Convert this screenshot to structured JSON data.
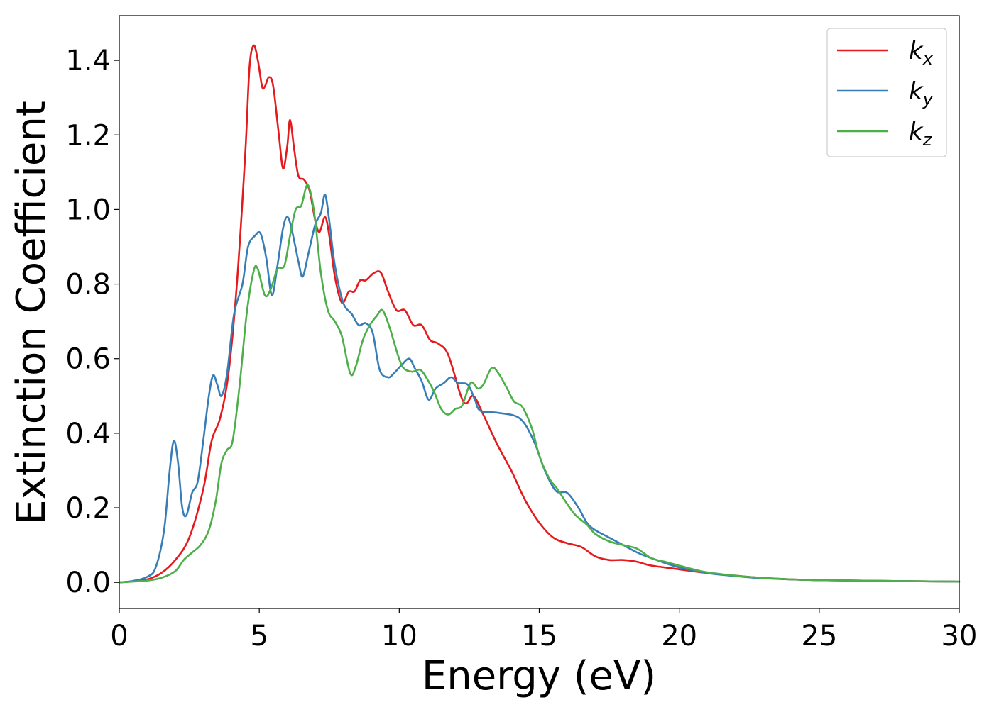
{
  "chart_data": {
    "type": "line",
    "title": "",
    "xlabel": "Energy (eV)",
    "ylabel": "Extinction Coefficient",
    "xlim": [
      0,
      30
    ],
    "ylim": [
      -0.07,
      1.52
    ],
    "xticks": [
      0,
      5,
      10,
      15,
      20,
      25,
      30
    ],
    "xtick_labels": [
      "0",
      "5",
      "10",
      "15",
      "20",
      "25",
      "30"
    ],
    "yticks": [
      0.0,
      0.2,
      0.4,
      0.6,
      0.8,
      1.0,
      1.2,
      1.4
    ],
    "ytick_labels": [
      "0.0",
      "0.2",
      "0.4",
      "0.6",
      "0.8",
      "1.0",
      "1.2",
      "1.4"
    ],
    "grid": false,
    "legend_position": "top-right",
    "series": [
      {
        "name": "k_x",
        "label_base": "k",
        "label_sub": "x",
        "color": "#e41a1c",
        "points": [
          [
            0,
            0
          ],
          [
            0.5,
            0.003
          ],
          [
            1,
            0.008
          ],
          [
            1.5,
            0.025
          ],
          [
            2,
            0.06
          ],
          [
            2.5,
            0.12
          ],
          [
            3,
            0.25
          ],
          [
            3.3,
            0.38
          ],
          [
            3.6,
            0.44
          ],
          [
            3.9,
            0.56
          ],
          [
            4.2,
            0.8
          ],
          [
            4.5,
            1.15
          ],
          [
            4.65,
            1.38
          ],
          [
            4.8,
            1.44
          ],
          [
            4.95,
            1.4
          ],
          [
            5.1,
            1.33
          ],
          [
            5.2,
            1.33
          ],
          [
            5.35,
            1.355
          ],
          [
            5.5,
            1.33
          ],
          [
            5.7,
            1.2
          ],
          [
            5.85,
            1.11
          ],
          [
            6.0,
            1.17
          ],
          [
            6.1,
            1.24
          ],
          [
            6.25,
            1.16
          ],
          [
            6.4,
            1.09
          ],
          [
            6.6,
            1.08
          ],
          [
            6.8,
            1.05
          ],
          [
            7.0,
            0.97
          ],
          [
            7.15,
            0.94
          ],
          [
            7.35,
            0.98
          ],
          [
            7.5,
            0.93
          ],
          [
            7.7,
            0.82
          ],
          [
            7.95,
            0.75
          ],
          [
            8.2,
            0.78
          ],
          [
            8.4,
            0.78
          ],
          [
            8.6,
            0.81
          ],
          [
            8.8,
            0.81
          ],
          [
            9.1,
            0.83
          ],
          [
            9.35,
            0.83
          ],
          [
            9.6,
            0.78
          ],
          [
            9.9,
            0.73
          ],
          [
            10.2,
            0.73
          ],
          [
            10.5,
            0.69
          ],
          [
            10.8,
            0.69
          ],
          [
            11.1,
            0.65
          ],
          [
            11.4,
            0.64
          ],
          [
            11.75,
            0.61
          ],
          [
            12.2,
            0.5
          ],
          [
            12.4,
            0.48
          ],
          [
            12.65,
            0.5
          ],
          [
            13.0,
            0.45
          ],
          [
            13.5,
            0.37
          ],
          [
            14.0,
            0.3
          ],
          [
            14.5,
            0.22
          ],
          [
            15.0,
            0.16
          ],
          [
            15.5,
            0.12
          ],
          [
            16.0,
            0.105
          ],
          [
            16.5,
            0.095
          ],
          [
            17.0,
            0.07
          ],
          [
            17.5,
            0.06
          ],
          [
            18.0,
            0.06
          ],
          [
            18.5,
            0.055
          ],
          [
            19.0,
            0.045
          ],
          [
            20.0,
            0.035
          ],
          [
            21.0,
            0.025
          ],
          [
            22.0,
            0.018
          ],
          [
            23.0,
            0.012
          ],
          [
            25.0,
            0.006
          ],
          [
            30.0,
            0.002
          ]
        ]
      },
      {
        "name": "k_y",
        "label_base": "k",
        "label_sub": "y",
        "color": "#377eb8",
        "points": [
          [
            0,
            0
          ],
          [
            0.5,
            0.004
          ],
          [
            1,
            0.015
          ],
          [
            1.3,
            0.04
          ],
          [
            1.6,
            0.14
          ],
          [
            1.8,
            0.3
          ],
          [
            1.95,
            0.38
          ],
          [
            2.1,
            0.32
          ],
          [
            2.25,
            0.2
          ],
          [
            2.4,
            0.18
          ],
          [
            2.6,
            0.24
          ],
          [
            2.8,
            0.27
          ],
          [
            3.0,
            0.38
          ],
          [
            3.2,
            0.5
          ],
          [
            3.35,
            0.555
          ],
          [
            3.5,
            0.53
          ],
          [
            3.65,
            0.5
          ],
          [
            3.85,
            0.56
          ],
          [
            4.1,
            0.72
          ],
          [
            4.4,
            0.8
          ],
          [
            4.6,
            0.9
          ],
          [
            4.85,
            0.93
          ],
          [
            5.05,
            0.935
          ],
          [
            5.25,
            0.87
          ],
          [
            5.45,
            0.77
          ],
          [
            5.65,
            0.85
          ],
          [
            5.85,
            0.95
          ],
          [
            6.0,
            0.98
          ],
          [
            6.15,
            0.95
          ],
          [
            6.4,
            0.86
          ],
          [
            6.55,
            0.82
          ],
          [
            6.75,
            0.88
          ],
          [
            7.0,
            0.96
          ],
          [
            7.2,
            0.99
          ],
          [
            7.35,
            1.04
          ],
          [
            7.5,
            0.97
          ],
          [
            7.7,
            0.85
          ],
          [
            8.0,
            0.75
          ],
          [
            8.3,
            0.72
          ],
          [
            8.55,
            0.69
          ],
          [
            8.8,
            0.695
          ],
          [
            9.05,
            0.67
          ],
          [
            9.3,
            0.57
          ],
          [
            9.6,
            0.55
          ],
          [
            9.8,
            0.56
          ],
          [
            10.05,
            0.58
          ],
          [
            10.35,
            0.6
          ],
          [
            10.55,
            0.575
          ],
          [
            10.8,
            0.54
          ],
          [
            11.05,
            0.49
          ],
          [
            11.3,
            0.52
          ],
          [
            11.6,
            0.535
          ],
          [
            11.85,
            0.55
          ],
          [
            12.1,
            0.535
          ],
          [
            12.45,
            0.53
          ],
          [
            12.7,
            0.49
          ],
          [
            12.9,
            0.46
          ],
          [
            13.5,
            0.455
          ],
          [
            14.3,
            0.44
          ],
          [
            14.8,
            0.38
          ],
          [
            15.2,
            0.3
          ],
          [
            15.6,
            0.245
          ],
          [
            16.0,
            0.24
          ],
          [
            16.4,
            0.2
          ],
          [
            16.7,
            0.16
          ],
          [
            17.0,
            0.14
          ],
          [
            17.5,
            0.12
          ],
          [
            18.0,
            0.1
          ],
          [
            18.5,
            0.08
          ],
          [
            19.0,
            0.065
          ],
          [
            20.0,
            0.04
          ],
          [
            21.0,
            0.025
          ],
          [
            22.0,
            0.017
          ],
          [
            23.0,
            0.011
          ],
          [
            25.0,
            0.006
          ],
          [
            30.0,
            0.002
          ]
        ]
      },
      {
        "name": "k_z",
        "label_base": "k",
        "label_sub": "z",
        "color": "#4daf4a",
        "points": [
          [
            0,
            0
          ],
          [
            0.5,
            0.002
          ],
          [
            1,
            0.005
          ],
          [
            1.5,
            0.012
          ],
          [
            2,
            0.03
          ],
          [
            2.3,
            0.06
          ],
          [
            2.6,
            0.08
          ],
          [
            2.9,
            0.1
          ],
          [
            3.2,
            0.14
          ],
          [
            3.45,
            0.22
          ],
          [
            3.65,
            0.32
          ],
          [
            3.85,
            0.355
          ],
          [
            4.05,
            0.38
          ],
          [
            4.3,
            0.53
          ],
          [
            4.55,
            0.72
          ],
          [
            4.8,
            0.835
          ],
          [
            4.95,
            0.84
          ],
          [
            5.2,
            0.77
          ],
          [
            5.4,
            0.785
          ],
          [
            5.65,
            0.84
          ],
          [
            5.9,
            0.85
          ],
          [
            6.1,
            0.93
          ],
          [
            6.3,
            1.0
          ],
          [
            6.5,
            1.01
          ],
          [
            6.7,
            1.065
          ],
          [
            6.85,
            1.04
          ],
          [
            7.0,
            0.97
          ],
          [
            7.2,
            0.83
          ],
          [
            7.45,
            0.73
          ],
          [
            7.7,
            0.7
          ],
          [
            7.95,
            0.66
          ],
          [
            8.25,
            0.56
          ],
          [
            8.45,
            0.58
          ],
          [
            8.7,
            0.65
          ],
          [
            8.95,
            0.69
          ],
          [
            9.2,
            0.715
          ],
          [
            9.4,
            0.73
          ],
          [
            9.65,
            0.685
          ],
          [
            9.95,
            0.61
          ],
          [
            10.15,
            0.575
          ],
          [
            10.45,
            0.565
          ],
          [
            10.75,
            0.57
          ],
          [
            11.0,
            0.545
          ],
          [
            11.25,
            0.51
          ],
          [
            11.5,
            0.465
          ],
          [
            11.75,
            0.45
          ],
          [
            12.0,
            0.465
          ],
          [
            12.25,
            0.475
          ],
          [
            12.55,
            0.535
          ],
          [
            12.8,
            0.52
          ],
          [
            13.0,
            0.53
          ],
          [
            13.3,
            0.575
          ],
          [
            13.55,
            0.56
          ],
          [
            13.85,
            0.52
          ],
          [
            14.1,
            0.485
          ],
          [
            14.4,
            0.47
          ],
          [
            14.75,
            0.41
          ],
          [
            15.0,
            0.34
          ],
          [
            15.35,
            0.28
          ],
          [
            15.65,
            0.25
          ],
          [
            16.0,
            0.21
          ],
          [
            16.3,
            0.18
          ],
          [
            16.7,
            0.155
          ],
          [
            17.0,
            0.13
          ],
          [
            17.5,
            0.11
          ],
          [
            18.0,
            0.1
          ],
          [
            18.5,
            0.09
          ],
          [
            19.0,
            0.065
          ],
          [
            19.5,
            0.055
          ],
          [
            20.0,
            0.045
          ],
          [
            20.5,
            0.035
          ],
          [
            21.0,
            0.027
          ],
          [
            22.0,
            0.018
          ],
          [
            23.0,
            0.012
          ],
          [
            25.0,
            0.006
          ],
          [
            30.0,
            0.002
          ]
        ]
      }
    ]
  }
}
